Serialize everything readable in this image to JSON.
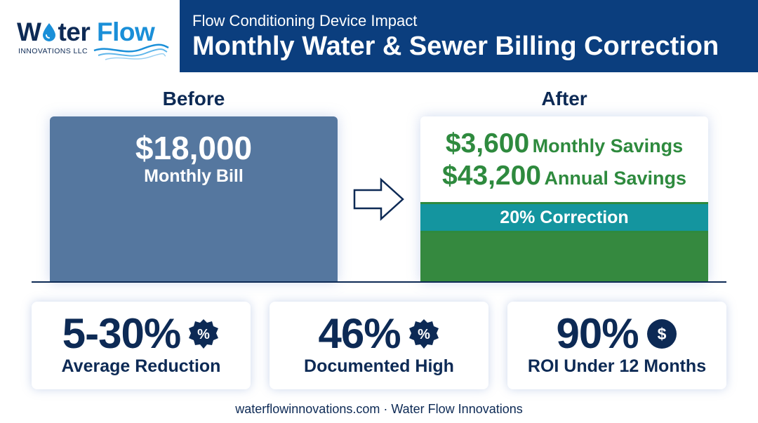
{
  "brand": {
    "logo_word_part1": "W",
    "logo_word_part1b": "ter",
    "logo_word_part2": "Flow",
    "logo_subtitle": "INNOVATIONS LLC"
  },
  "header": {
    "subtitle": "Flow Conditioning Device Impact",
    "title": "Monthly Water & Sewer Billing Correction"
  },
  "before": {
    "label": "Before",
    "amount": "$18,000",
    "caption": "Monthly Bill"
  },
  "after": {
    "label": "After",
    "monthly_amount": "$3,600",
    "monthly_text": "Monthly Savings",
    "annual_amount": "$43,200",
    "annual_text": "Annual Savings",
    "correction": "20% Correction"
  },
  "stats": [
    {
      "value": "5-30%",
      "label": "Average Reduction",
      "icon": "percent-badge-icon"
    },
    {
      "value": "46%",
      "label": "Documented High",
      "icon": "percent-badge-icon"
    },
    {
      "value": "90%",
      "label": "ROI Under 12 Months",
      "icon": "dollar-coin-icon"
    }
  ],
  "footer": "waterflowinnovations.com · Water Flow Innovations",
  "colors": {
    "navy": "#0d2a55",
    "header_blue": "#0b3e7e",
    "before_blue": "#55779f",
    "savings_green": "#2e8a3e",
    "teal": "#14959f",
    "logo_blue": "#1a8fd8"
  }
}
